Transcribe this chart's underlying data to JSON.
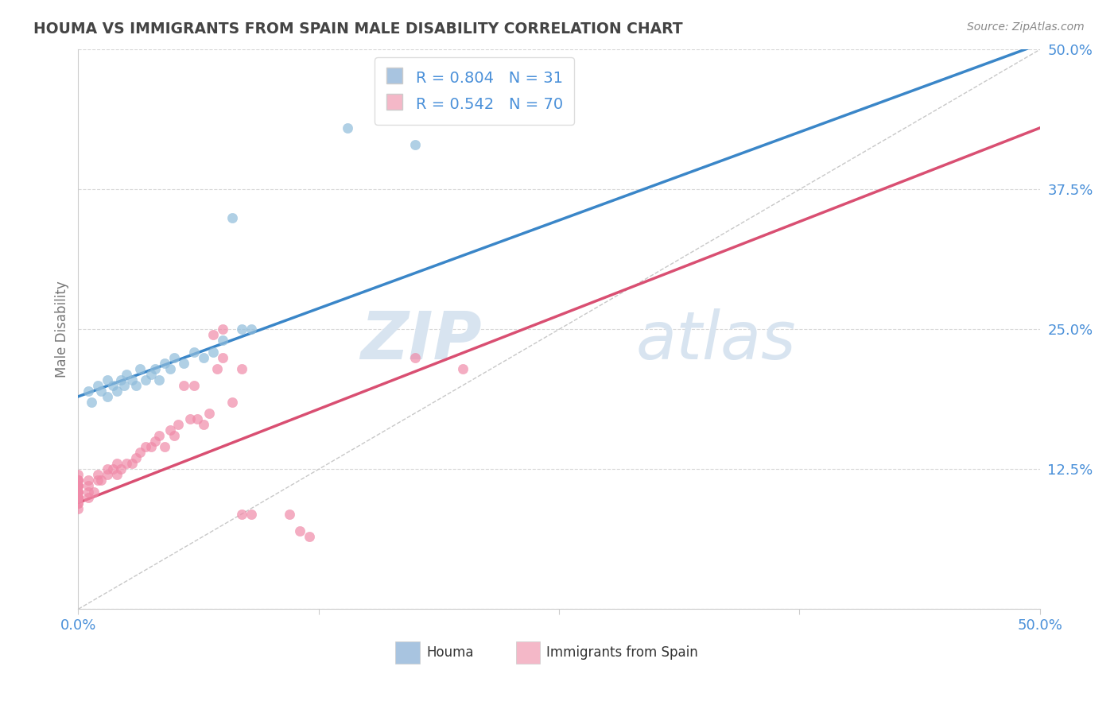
{
  "title": "HOUMA VS IMMIGRANTS FROM SPAIN MALE DISABILITY CORRELATION CHART",
  "source_text": "Source: ZipAtlas.com",
  "ylabel": "Male Disability",
  "legend_entries": [
    {
      "label": "Houma",
      "R": 0.804,
      "N": 31,
      "color": "#a8c4e0"
    },
    {
      "label": "Immigrants from Spain",
      "R": 0.542,
      "N": 70,
      "color": "#f4b8c8"
    }
  ],
  "scatter_houma": [
    [
      0.005,
      0.195
    ],
    [
      0.007,
      0.185
    ],
    [
      0.01,
      0.2
    ],
    [
      0.012,
      0.195
    ],
    [
      0.015,
      0.19
    ],
    [
      0.015,
      0.205
    ],
    [
      0.018,
      0.2
    ],
    [
      0.02,
      0.195
    ],
    [
      0.022,
      0.205
    ],
    [
      0.024,
      0.2
    ],
    [
      0.025,
      0.21
    ],
    [
      0.028,
      0.205
    ],
    [
      0.03,
      0.2
    ],
    [
      0.032,
      0.215
    ],
    [
      0.035,
      0.205
    ],
    [
      0.038,
      0.21
    ],
    [
      0.04,
      0.215
    ],
    [
      0.042,
      0.205
    ],
    [
      0.045,
      0.22
    ],
    [
      0.048,
      0.215
    ],
    [
      0.05,
      0.225
    ],
    [
      0.055,
      0.22
    ],
    [
      0.06,
      0.23
    ],
    [
      0.065,
      0.225
    ],
    [
      0.07,
      0.23
    ],
    [
      0.075,
      0.24
    ],
    [
      0.08,
      0.35
    ],
    [
      0.085,
      0.25
    ],
    [
      0.09,
      0.25
    ],
    [
      0.14,
      0.43
    ],
    [
      0.175,
      0.415
    ]
  ],
  "scatter_spain": [
    [
      0.0,
      0.09
    ],
    [
      0.0,
      0.095
    ],
    [
      0.0,
      0.095
    ],
    [
      0.0,
      0.1
    ],
    [
      0.0,
      0.1
    ],
    [
      0.0,
      0.1
    ],
    [
      0.0,
      0.1
    ],
    [
      0.0,
      0.1
    ],
    [
      0.0,
      0.1
    ],
    [
      0.0,
      0.1
    ],
    [
      0.0,
      0.1
    ],
    [
      0.0,
      0.1
    ],
    [
      0.0,
      0.105
    ],
    [
      0.0,
      0.105
    ],
    [
      0.0,
      0.105
    ],
    [
      0.0,
      0.105
    ],
    [
      0.0,
      0.11
    ],
    [
      0.0,
      0.11
    ],
    [
      0.0,
      0.11
    ],
    [
      0.0,
      0.11
    ],
    [
      0.0,
      0.11
    ],
    [
      0.0,
      0.115
    ],
    [
      0.0,
      0.115
    ],
    [
      0.0,
      0.115
    ],
    [
      0.0,
      0.12
    ],
    [
      0.005,
      0.1
    ],
    [
      0.005,
      0.105
    ],
    [
      0.005,
      0.11
    ],
    [
      0.005,
      0.115
    ],
    [
      0.008,
      0.105
    ],
    [
      0.01,
      0.115
    ],
    [
      0.01,
      0.12
    ],
    [
      0.012,
      0.115
    ],
    [
      0.015,
      0.12
    ],
    [
      0.015,
      0.125
    ],
    [
      0.018,
      0.125
    ],
    [
      0.02,
      0.12
    ],
    [
      0.02,
      0.13
    ],
    [
      0.022,
      0.125
    ],
    [
      0.025,
      0.13
    ],
    [
      0.028,
      0.13
    ],
    [
      0.03,
      0.135
    ],
    [
      0.032,
      0.14
    ],
    [
      0.035,
      0.145
    ],
    [
      0.038,
      0.145
    ],
    [
      0.04,
      0.15
    ],
    [
      0.042,
      0.155
    ],
    [
      0.045,
      0.145
    ],
    [
      0.048,
      0.16
    ],
    [
      0.05,
      0.155
    ],
    [
      0.052,
      0.165
    ],
    [
      0.055,
      0.2
    ],
    [
      0.058,
      0.17
    ],
    [
      0.06,
      0.2
    ],
    [
      0.062,
      0.17
    ],
    [
      0.065,
      0.165
    ],
    [
      0.068,
      0.175
    ],
    [
      0.07,
      0.245
    ],
    [
      0.072,
      0.215
    ],
    [
      0.075,
      0.225
    ],
    [
      0.075,
      0.25
    ],
    [
      0.08,
      0.185
    ],
    [
      0.085,
      0.215
    ],
    [
      0.085,
      0.085
    ],
    [
      0.09,
      0.085
    ],
    [
      0.11,
      0.085
    ],
    [
      0.115,
      0.07
    ],
    [
      0.12,
      0.065
    ],
    [
      0.175,
      0.225
    ],
    [
      0.2,
      0.215
    ]
  ],
  "houma_line": {
    "x0": 0.0,
    "y0": 0.19,
    "x1": 0.5,
    "y1": 0.505
  },
  "spain_line": {
    "x0": 0.0,
    "y0": 0.095,
    "x1": 0.5,
    "y1": 0.43
  },
  "ref_line": {
    "x0": 0.0,
    "y0": 0.0,
    "x1": 0.5,
    "y1": 0.5
  },
  "houma_dot_color": "#8fbcdb",
  "spain_dot_color": "#f08aa8",
  "houma_line_color": "#3a86c8",
  "spain_line_color": "#d94f72",
  "ref_line_color": "#c8c8c8",
  "xlim": [
    0.0,
    0.5
  ],
  "ylim": [
    0.0,
    0.5
  ],
  "xticks": [
    0.0,
    0.125,
    0.25,
    0.375,
    0.5
  ],
  "yticks": [
    0.0,
    0.125,
    0.25,
    0.375,
    0.5
  ],
  "ytick_labels_right": [
    "",
    "12.5%",
    "25.0%",
    "37.5%",
    "50.0%"
  ],
  "grid_color": "#d8d8d8",
  "background_color": "#ffffff",
  "watermark_zip": "ZIP",
  "watermark_atlas": "atlas",
  "watermark_color": "#d8e4f0",
  "title_color": "#444444",
  "axis_label_color": "#777777",
  "source_color": "#888888",
  "tick_label_color": "#4a90d9",
  "bottom_legend": [
    {
      "label": "Houma",
      "color": "#a8c4e0"
    },
    {
      "label": "Immigrants from Spain",
      "color": "#f4b8c8"
    }
  ]
}
